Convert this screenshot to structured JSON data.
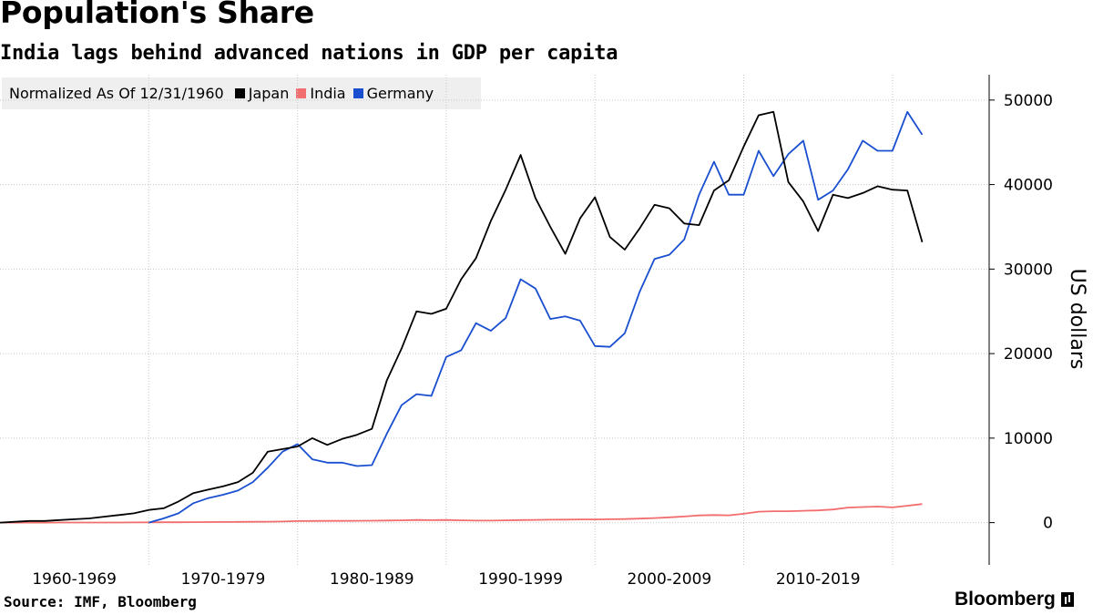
{
  "chart_data": {
    "type": "line",
    "title": "Population's Share",
    "subtitle": "India lags behind advanced nations in GDP per capita",
    "legend_note": "Normalized As Of 12/31/1960",
    "ylabel": "US dollars",
    "xlabel": "",
    "ylim": [
      -5000,
      53000
    ],
    "y_ticks": [
      0,
      10000,
      20000,
      30000,
      40000,
      50000
    ],
    "x_range": [
      1960,
      2026.5
    ],
    "x_boundaries": [
      1970,
      1980,
      1990,
      2000,
      2010,
      2020
    ],
    "x_tick_labels": [
      {
        "label": "1960-1969",
        "center": 1965
      },
      {
        "label": "1970-1979",
        "center": 1975
      },
      {
        "label": "1980-1989",
        "center": 1985
      },
      {
        "label": "1990-1999",
        "center": 1995
      },
      {
        "label": "2000-2009",
        "center": 2005
      },
      {
        "label": "2010-2019",
        "center": 2015
      }
    ],
    "grid": true,
    "series": [
      {
        "name": "Japan",
        "color": "#000000",
        "x": [
          1960,
          1961,
          1962,
          1963,
          1964,
          1965,
          1966,
          1967,
          1968,
          1969,
          1970,
          1971,
          1972,
          1973,
          1974,
          1975,
          1976,
          1977,
          1978,
          1979,
          1980,
          1981,
          1982,
          1983,
          1984,
          1985,
          1986,
          1987,
          1988,
          1989,
          1990,
          1991,
          1992,
          1993,
          1994,
          1995,
          1996,
          1997,
          1998,
          1999,
          2000,
          2001,
          2002,
          2003,
          2004,
          2005,
          2006,
          2007,
          2008,
          2009,
          2010,
          2011,
          2012,
          2013,
          2014,
          2015,
          2016,
          2017,
          2018,
          2019,
          2020,
          2021,
          2022
        ],
        "values": [
          0,
          100,
          200,
          200,
          300,
          400,
          500,
          700,
          900,
          1100,
          1500,
          1700,
          2500,
          3500,
          3900,
          4300,
          4800,
          5900,
          8400,
          8700,
          9000,
          10000,
          9200,
          9900,
          10400,
          11100,
          16800,
          20600,
          25000,
          24700,
          25300,
          28800,
          31300,
          35700,
          39400,
          43500,
          38400,
          35000,
          31800,
          36000,
          38500,
          33800,
          32300,
          34800,
          37600,
          37200,
          35400,
          35200,
          39300,
          40500,
          44500,
          48200,
          48600,
          40300,
          38000,
          34500,
          38800,
          38400,
          39000,
          39800,
          39400,
          39300,
          33200
        ]
      },
      {
        "name": "India",
        "color": "#f26d6d",
        "x": [
          1960,
          1961,
          1962,
          1963,
          1964,
          1965,
          1966,
          1967,
          1968,
          1969,
          1970,
          1971,
          1972,
          1973,
          1974,
          1975,
          1976,
          1977,
          1978,
          1979,
          1980,
          1981,
          1982,
          1983,
          1984,
          1985,
          1986,
          1987,
          1988,
          1989,
          1990,
          1991,
          1992,
          1993,
          1994,
          1995,
          1996,
          1997,
          1998,
          1999,
          2000,
          2001,
          2002,
          2003,
          2004,
          2005,
          2006,
          2007,
          2008,
          2009,
          2010,
          2011,
          2012,
          2013,
          2014,
          2015,
          2016,
          2017,
          2018,
          2019,
          2020,
          2021,
          2022
        ],
        "values": [
          0,
          0,
          0,
          0,
          10,
          10,
          10,
          10,
          10,
          20,
          30,
          40,
          50,
          60,
          70,
          80,
          90,
          100,
          110,
          130,
          190,
          200,
          210,
          210,
          220,
          230,
          250,
          270,
          310,
          290,
          320,
          270,
          240,
          240,
          270,
          300,
          330,
          350,
          360,
          380,
          380,
          400,
          420,
          480,
          540,
          630,
          720,
          850,
          900,
          860,
          1050,
          1300,
          1350,
          1350,
          1400,
          1450,
          1550,
          1780,
          1850,
          1900,
          1800,
          2000,
          2200
        ]
      },
      {
        "name": "Germany",
        "color": "#1a4fd0",
        "x": [
          1970,
          1971,
          1972,
          1973,
          1974,
          1975,
          1976,
          1977,
          1978,
          1979,
          1980,
          1981,
          1982,
          1983,
          1984,
          1985,
          1986,
          1987,
          1988,
          1989,
          1990,
          1991,
          1992,
          1993,
          1994,
          1995,
          1996,
          1997,
          1998,
          1999,
          2000,
          2001,
          2002,
          2003,
          2004,
          2005,
          2006,
          2007,
          2008,
          2009,
          2010,
          2011,
          2012,
          2013,
          2014,
          2015,
          2016,
          2017,
          2018,
          2019,
          2020,
          2021,
          2022
        ],
        "values": [
          0,
          500,
          1100,
          2300,
          2900,
          3300,
          3800,
          4800,
          6500,
          8400,
          9300,
          7500,
          7100,
          7100,
          6700,
          6800,
          10500,
          13900,
          15200,
          15000,
          19600,
          20400,
          23600,
          22700,
          24200,
          28800,
          27700,
          24100,
          24400,
          23900,
          20900,
          20800,
          22400,
          27300,
          31200,
          31700,
          33500,
          38800,
          42700,
          38800,
          38800,
          44000,
          41000,
          43600,
          45200,
          38200,
          39300,
          41800,
          45200,
          44000,
          44000,
          48600,
          45900
        ]
      }
    ]
  },
  "footer": {
    "source": "Source: IMF, Bloomberg",
    "brand": "Bloomberg"
  }
}
